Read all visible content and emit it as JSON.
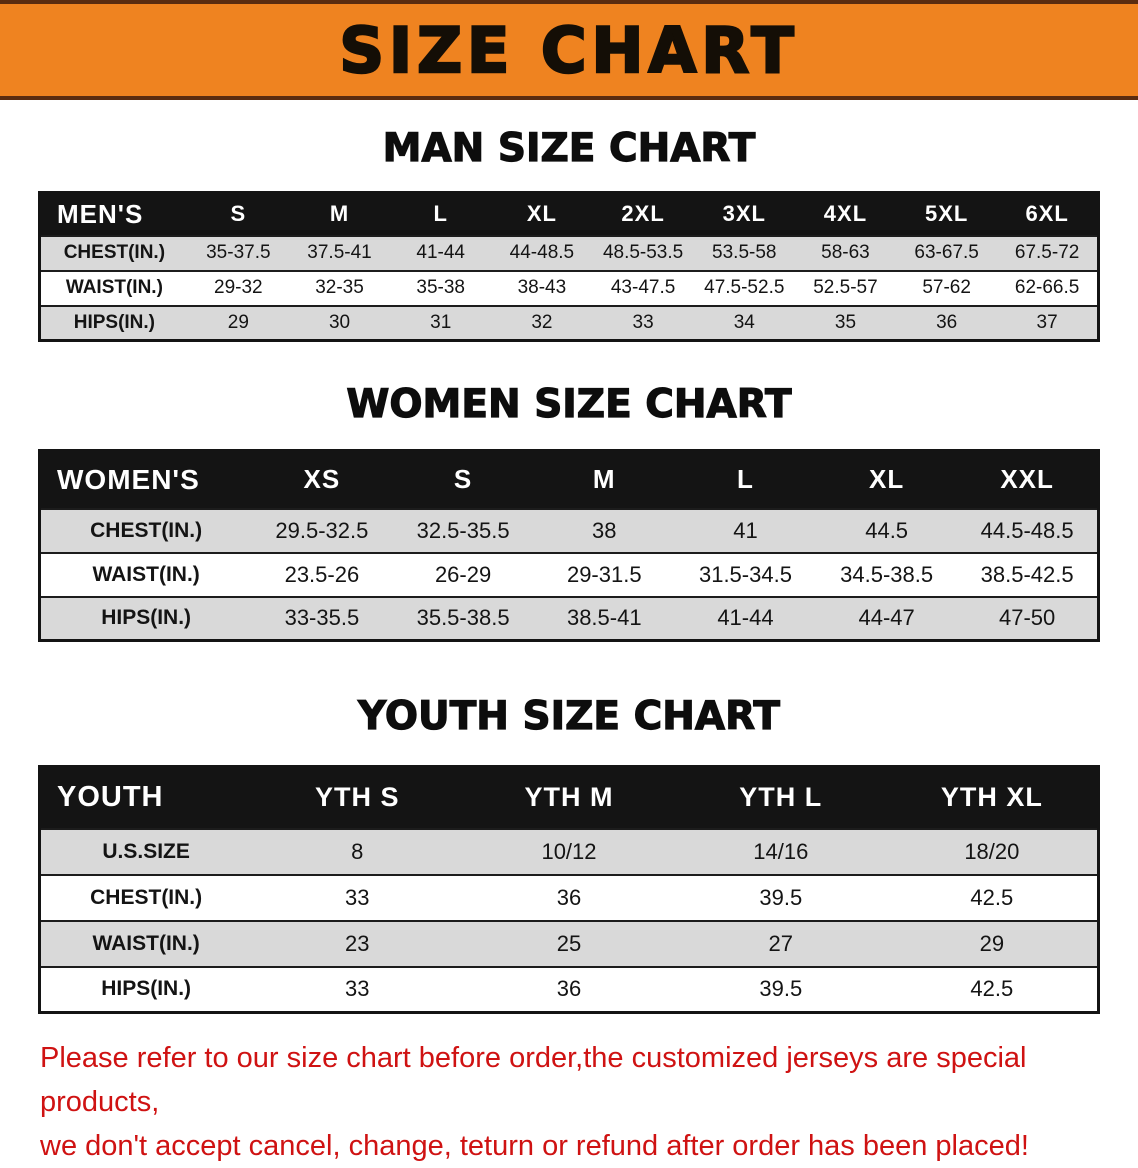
{
  "banner": {
    "title": "SIZE CHART"
  },
  "colors": {
    "banner_orange": "#ef8320",
    "banner_edge_brown": "#5a2c10",
    "table_header_bg": "#141414",
    "table_header_text": "#ffffff",
    "row_stripe_gray": "#d9d9d9",
    "disclaimer_red": "#cf1212"
  },
  "sections": [
    {
      "heading": "MAN SIZE CHART"
    },
    {
      "heading": "WOMEN SIZE CHART"
    },
    {
      "heading": "YOUTH SIZE CHART"
    }
  ],
  "chart_data": [
    {
      "type": "table",
      "title": "MAN SIZE CHART",
      "columns": [
        "MEN'S",
        "S",
        "M",
        "L",
        "XL",
        "2XL",
        "3XL",
        "4XL",
        "5XL",
        "6XL"
      ],
      "rows": [
        [
          "CHEST(IN.)",
          "35-37.5",
          "37.5-41",
          "41-44",
          "44-48.5",
          "48.5-53.5",
          "53.5-58",
          "58-63",
          "63-67.5",
          "67.5-72"
        ],
        [
          "WAIST(IN.)",
          "29-32",
          "32-35",
          "35-38",
          "38-43",
          "43-47.5",
          "47.5-52.5",
          "52.5-57",
          "57-62",
          "62-66.5"
        ],
        [
          "HIPS(IN.)",
          "29",
          "30",
          "31",
          "32",
          "33",
          "34",
          "35",
          "36",
          "37"
        ]
      ]
    },
    {
      "type": "table",
      "title": "WOMEN SIZE CHART",
      "columns": [
        "WOMEN'S",
        "XS",
        "S",
        "M",
        "L",
        "XL",
        "XXL"
      ],
      "rows": [
        [
          "CHEST(IN.)",
          "29.5-32.5",
          "32.5-35.5",
          "38",
          "41",
          "44.5",
          "44.5-48.5"
        ],
        [
          "WAIST(IN.)",
          "23.5-26",
          "26-29",
          "29-31.5",
          "31.5-34.5",
          "34.5-38.5",
          "38.5-42.5"
        ],
        [
          "HIPS(IN.)",
          "33-35.5",
          "35.5-38.5",
          "38.5-41",
          "41-44",
          "44-47",
          "47-50"
        ]
      ]
    },
    {
      "type": "table",
      "title": "YOUTH SIZE CHART",
      "columns": [
        "YOUTH",
        "YTH S",
        "YTH M",
        "YTH L",
        "YTH XL"
      ],
      "rows": [
        [
          "U.S.SIZE",
          "8",
          "10/12",
          "14/16",
          "18/20"
        ],
        [
          "CHEST(IN.)",
          "33",
          "36",
          "39.5",
          "42.5"
        ],
        [
          "WAIST(IN.)",
          "23",
          "25",
          "27",
          "29"
        ],
        [
          "HIPS(IN.)",
          "33",
          "36",
          "39.5",
          "42.5"
        ]
      ]
    }
  ],
  "disclaimer": {
    "line1": "Please refer to our size chart before order,the customized jerseys are special products,",
    "line2": "we don't accept cancel, change, teturn or refund after order has been placed!"
  }
}
